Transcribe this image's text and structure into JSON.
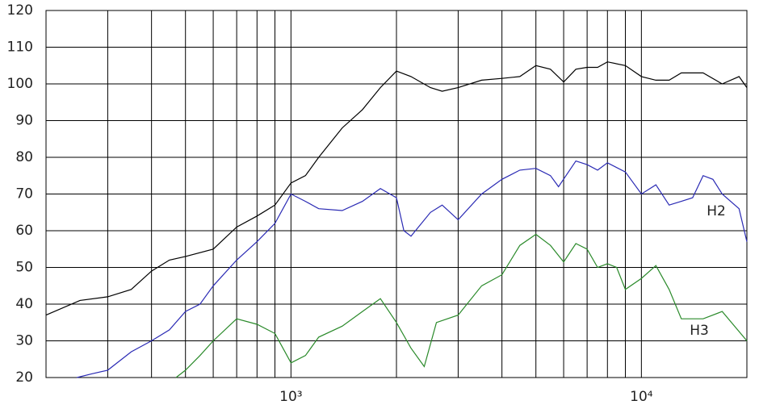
{
  "chart_data": {
    "type": "line",
    "xscale": "log",
    "grid": true,
    "xlim": [
      200,
      20000
    ],
    "ylim": [
      20,
      120
    ],
    "yticks": [
      20,
      30,
      40,
      50,
      60,
      70,
      80,
      90,
      100,
      110,
      120
    ],
    "xticks": [
      {
        "value": 1000,
        "label": "10³"
      },
      {
        "value": 10000,
        "label": "10⁴"
      }
    ],
    "xminor": [
      300,
      400,
      500,
      600,
      700,
      800,
      900,
      2000,
      3000,
      4000,
      5000,
      6000,
      7000,
      8000,
      9000
    ],
    "series": [
      {
        "color": "#000000",
        "x": [
          200,
          250,
          300,
          350,
          400,
          450,
          500,
          600,
          700,
          800,
          900,
          1000,
          1100,
          1200,
          1400,
          1600,
          1800,
          2000,
          2200,
          2500,
          2700,
          3000,
          3500,
          4000,
          4500,
          5000,
          5500,
          6000,
          6500,
          7000,
          7500,
          8000,
          9000,
          10000,
          11000,
          12000,
          13000,
          15000,
          17000,
          19000,
          20000
        ],
        "values": [
          37,
          41,
          42,
          44,
          49,
          52,
          53,
          55,
          61,
          64,
          67,
          73,
          75,
          80,
          88,
          93,
          99,
          103.5,
          102,
          99,
          98,
          99,
          101,
          101.5,
          102,
          105,
          104,
          100.5,
          104,
          104.5,
          104.5,
          106,
          105,
          102,
          101,
          101,
          103,
          103,
          100,
          102,
          99
        ]
      },
      {
        "name": "H2",
        "color": "#2a2ab4",
        "x": [
          245,
          270,
          300,
          350,
          400,
          450,
          500,
          550,
          600,
          700,
          800,
          900,
          1000,
          1100,
          1200,
          1400,
          1600,
          1800,
          2000,
          2100,
          2200,
          2500,
          2700,
          3000,
          3500,
          4000,
          4500,
          5000,
          5500,
          5800,
          6500,
          7000,
          7500,
          8000,
          9000,
          10000,
          11000,
          12000,
          13000,
          14000,
          15000,
          16000,
          17000,
          19000,
          20000
        ],
        "values": [
          20,
          21,
          22,
          27,
          30,
          33,
          38,
          40,
          45,
          52,
          57,
          62,
          70,
          68,
          66,
          65.5,
          68,
          71.5,
          69,
          60,
          58.5,
          65,
          67,
          63,
          70,
          74,
          76.5,
          77,
          75,
          72,
          79,
          78,
          76.5,
          78.5,
          76,
          70,
          72.5,
          67,
          68,
          69,
          75,
          74,
          70,
          66,
          57
        ]
      },
      {
        "name": "H3",
        "color": "#2a8a2a",
        "x": [
          470,
          500,
          550,
          600,
          700,
          800,
          900,
          1000,
          1100,
          1200,
          1400,
          1600,
          1800,
          2000,
          2200,
          2400,
          2600,
          3000,
          3500,
          4000,
          4500,
          5000,
          5500,
          6000,
          6500,
          7000,
          7500,
          8000,
          8500,
          9000,
          10000,
          11000,
          12000,
          13000,
          15000,
          17000,
          20000
        ],
        "values": [
          20,
          22,
          26,
          30,
          36,
          34.5,
          32,
          24,
          26,
          31,
          34,
          38,
          41.5,
          35,
          28,
          23,
          35,
          37,
          45,
          48,
          56,
          59,
          56,
          51.5,
          56.5,
          55,
          50,
          51,
          50,
          44,
          47,
          50.5,
          44,
          36,
          36,
          38,
          30
        ]
      }
    ]
  }
}
